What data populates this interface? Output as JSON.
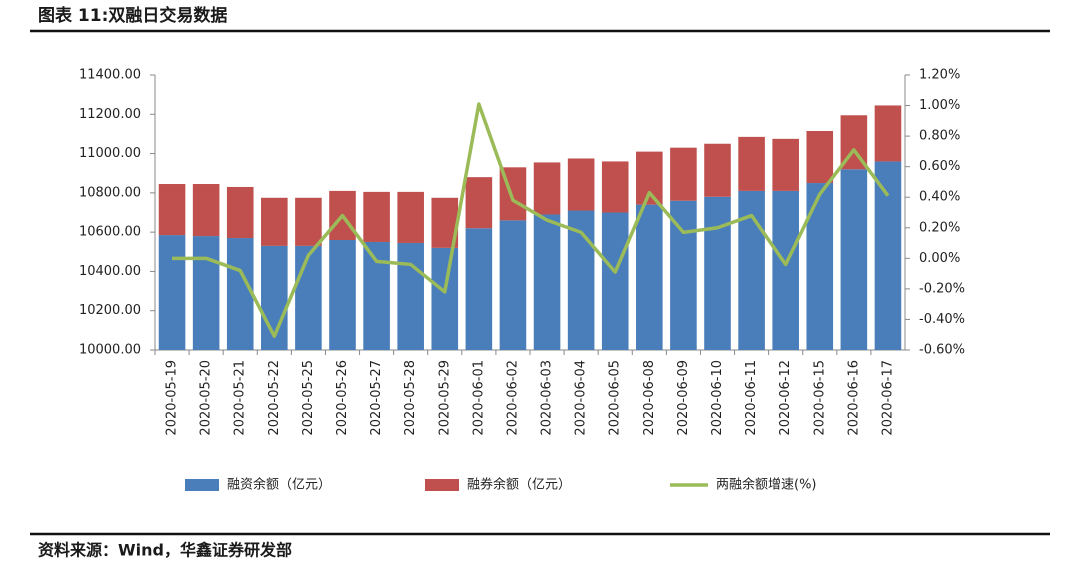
{
  "chart_data": {
    "type": "stacked_bar_line",
    "title": "图表 11:双融日交易数据",
    "source": "资料来源：Wind，华鑫证券研发部",
    "categories": [
      "2020-05-19",
      "2020-05-20",
      "2020-05-21",
      "2020-05-22",
      "2020-05-25",
      "2020-05-26",
      "2020-05-27",
      "2020-05-28",
      "2020-05-29",
      "2020-06-01",
      "2020-06-02",
      "2020-06-03",
      "2020-06-04",
      "2020-06-05",
      "2020-06-08",
      "2020-06-09",
      "2020-06-10",
      "2020-06-11",
      "2020-06-12",
      "2020-06-15",
      "2020-06-16",
      "2020-06-17"
    ],
    "series": [
      {
        "name": "融资余额（亿元）",
        "color": "#4a7ebb",
        "values": [
          10585,
          10580,
          10570,
          10530,
          10530,
          10560,
          10550,
          10545,
          10520,
          10620,
          10660,
          10690,
          10710,
          10700,
          10740,
          10760,
          10780,
          10810,
          10810,
          10850,
          10920,
          10960
        ]
      },
      {
        "name": "融券余额（亿元）",
        "color": "#c0504d",
        "values": [
          260,
          265,
          260,
          245,
          245,
          250,
          255,
          260,
          255,
          260,
          270,
          265,
          265,
          260,
          270,
          270,
          270,
          275,
          265,
          265,
          275,
          285
        ]
      },
      {
        "name": "两融余额增速(%)",
        "color": "#9bbb59",
        "axis": "y2",
        "values": [
          0.0,
          0.0,
          -0.08,
          -0.51,
          0.02,
          0.28,
          -0.02,
          -0.04,
          -0.22,
          1.01,
          0.38,
          0.25,
          0.17,
          -0.09,
          0.43,
          0.17,
          0.2,
          0.28,
          -0.04,
          0.42,
          0.71,
          0.41
        ]
      }
    ],
    "ylim": [
      10000,
      11400
    ],
    "yticks": [
      {
        "value": 10000,
        "label": "10000.00"
      },
      {
        "value": 10200,
        "label": "10200.00"
      },
      {
        "value": 10400,
        "label": "10400.00"
      },
      {
        "value": 10600,
        "label": "10600.00"
      },
      {
        "value": 10800,
        "label": "10800.00"
      },
      {
        "value": 11000,
        "label": "11000.00"
      },
      {
        "value": 11200,
        "label": "11200.00"
      },
      {
        "value": 11400,
        "label": "11400.00"
      }
    ],
    "y2lim": [
      -0.6,
      1.2
    ],
    "y2ticks": [
      {
        "value": -0.6,
        "label": "-0.60%"
      },
      {
        "value": -0.4,
        "label": "-0.40%"
      },
      {
        "value": -0.2,
        "label": "-0.20%"
      },
      {
        "value": 0,
        "label": "0.00%"
      },
      {
        "value": 0.2,
        "label": "0.20%"
      },
      {
        "value": 0.4,
        "label": "0.40%"
      },
      {
        "value": 0.6,
        "label": "0.60%"
      },
      {
        "value": 0.8,
        "label": "0.80%"
      },
      {
        "value": 1.0,
        "label": "1.00%"
      },
      {
        "value": 1.2,
        "label": "1.20%"
      }
    ]
  }
}
